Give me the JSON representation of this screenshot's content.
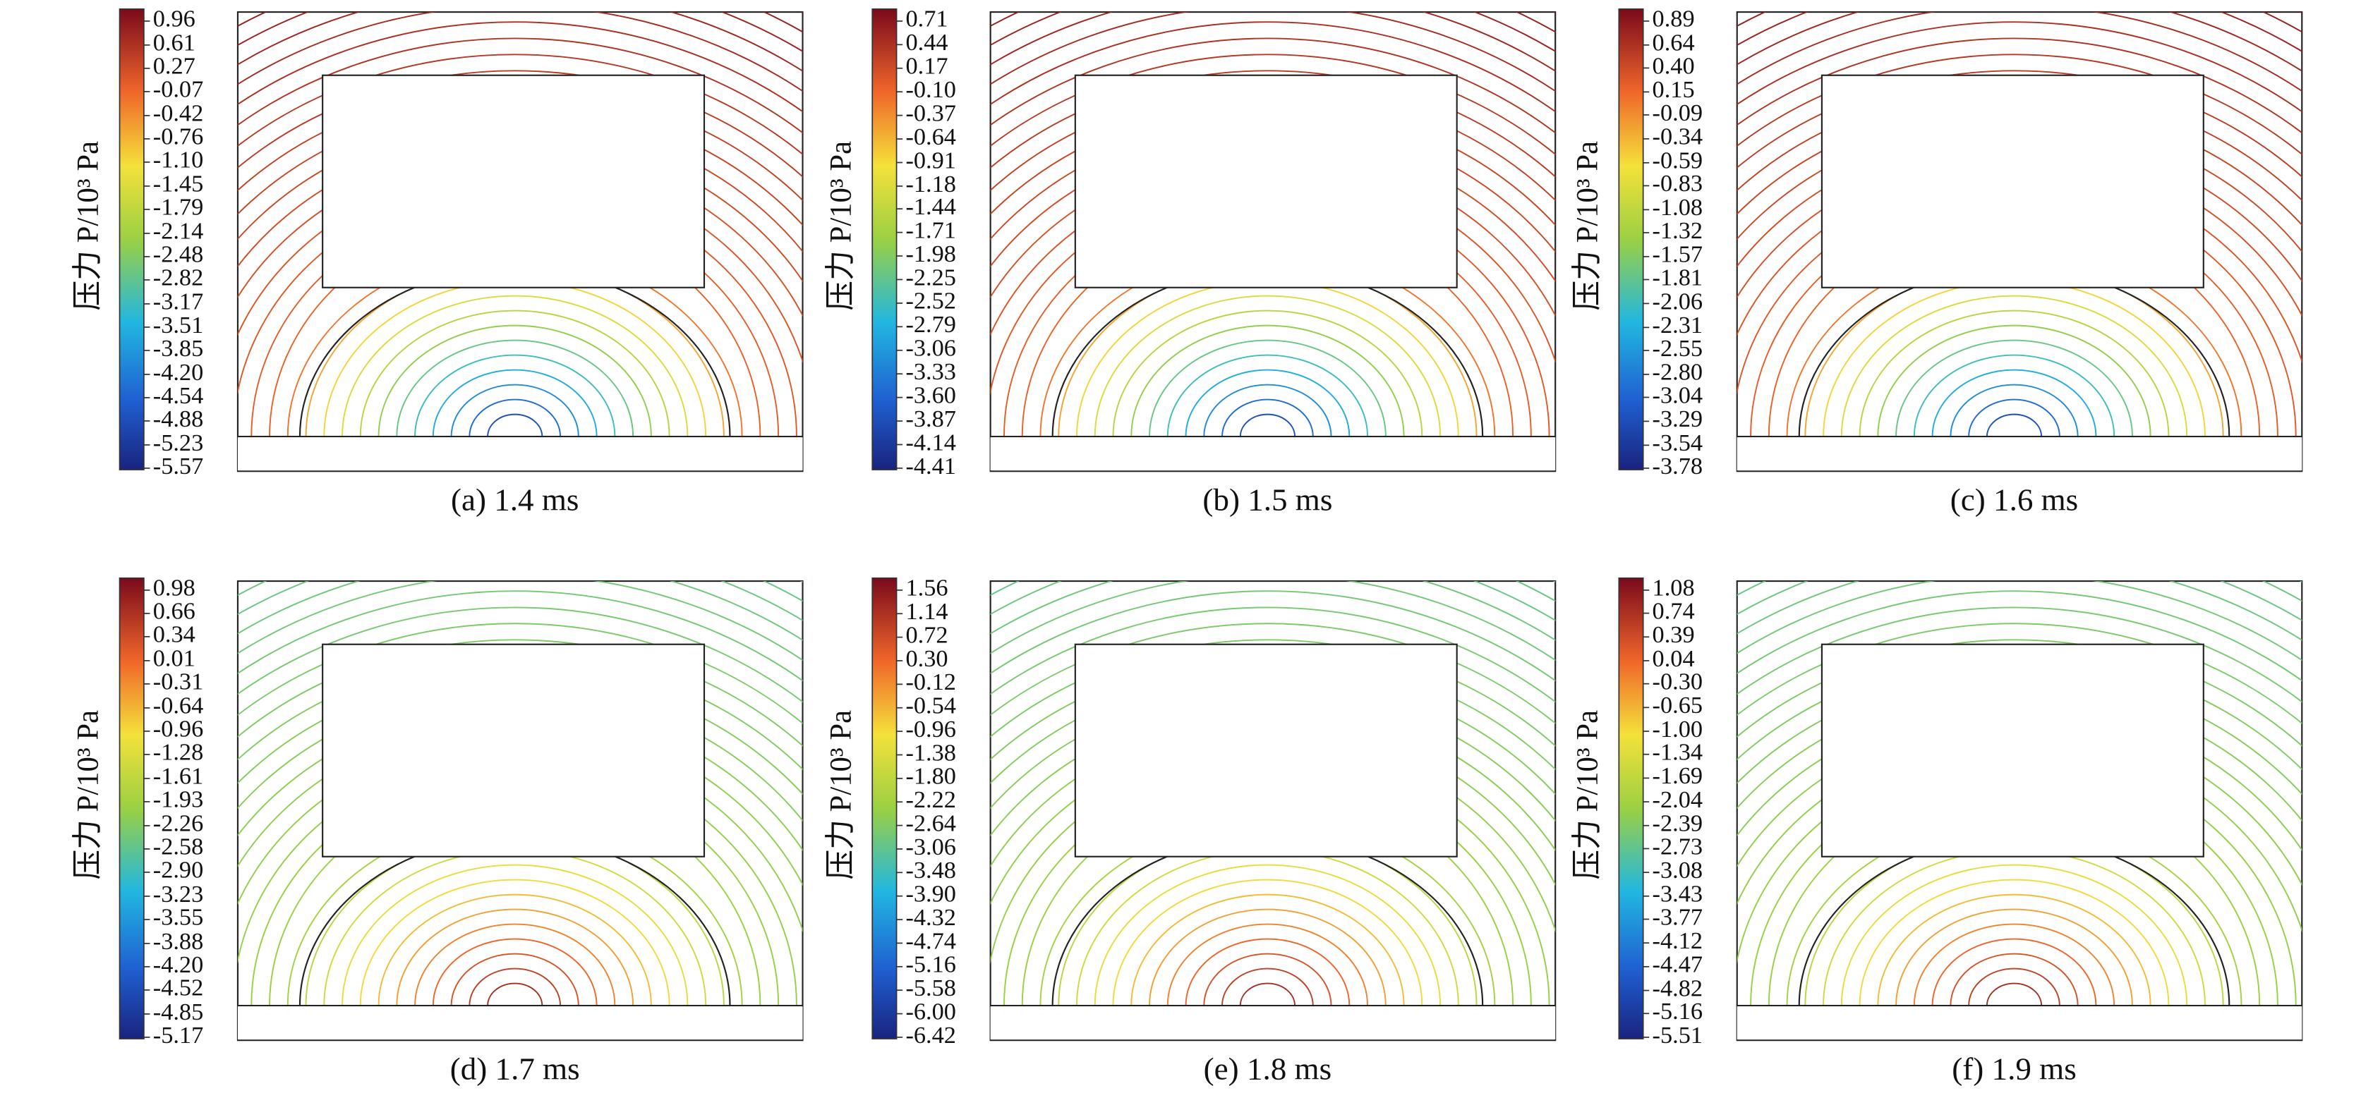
{
  "chart_data": [
    {
      "type": "contour",
      "colorbar_label": "压力 P/10³ Pa",
      "zlim": [
        -5.57,
        0.96
      ],
      "zticks": [
        0.96,
        0.61,
        0.27,
        -0.07,
        -0.42,
        -0.76,
        {
          "value": -1.1,
          "label": "-1.10"
        },
        -1.45,
        -1.79,
        -2.14,
        -2.48,
        -2.82,
        -3.17,
        -3.51,
        -3.85,
        {
          "value": -4.2,
          "label": "-4.20"
        },
        -4.54,
        -4.88,
        -5.23,
        -5.57
      ],
      "caption": "(a) 1.4 ms"
    },
    {
      "type": "contour",
      "colorbar_label": "压力 P/10³ Pa",
      "zlim": [
        -4.41,
        0.71
      ],
      "zticks": [
        0.71,
        0.44,
        0.17,
        {
          "value": -0.1,
          "label": "-0.10"
        },
        -0.37,
        -0.64,
        -0.91,
        -1.18,
        -1.44,
        -1.71,
        -1.98,
        -2.25,
        -2.52,
        -2.79,
        -3.06,
        -3.33,
        {
          "value": -3.6,
          "label": "-3.60"
        },
        -3.87,
        -4.14,
        -4.41
      ],
      "caption": "(b) 1.5 ms"
    },
    {
      "type": "contour",
      "colorbar_label": "压力 P/10³ Pa",
      "zlim": [
        -3.78,
        0.89
      ],
      "zticks": [
        0.89,
        0.64,
        {
          "value": 0.4,
          "label": "0.40"
        },
        0.15,
        -0.09,
        -0.34,
        -0.59,
        -0.83,
        -1.08,
        -1.32,
        -1.57,
        -1.81,
        -2.06,
        -2.31,
        -2.55,
        {
          "value": -2.8,
          "label": "-2.80"
        },
        -3.04,
        -3.29,
        -3.54,
        -3.78
      ],
      "caption": "(c) 1.6 ms"
    },
    {
      "type": "contour",
      "colorbar_label": "压力 P/10³ Pa",
      "zlim": [
        -5.17,
        0.98
      ],
      "zticks": [
        0.98,
        0.66,
        0.34,
        0.01,
        -0.31,
        -0.64,
        -0.96,
        -1.28,
        -1.61,
        -1.93,
        -2.26,
        -2.58,
        {
          "value": -2.9,
          "label": "-2.90"
        },
        -3.23,
        -3.55,
        -3.88,
        {
          "value": -4.2,
          "label": "-4.20"
        },
        -4.52,
        -4.85,
        -5.17
      ],
      "caption": "(d) 1.7 ms"
    },
    {
      "type": "contour",
      "colorbar_label": "压力 P/10³ Pa",
      "zlim": [
        -6.42,
        1.56
      ],
      "zticks": [
        1.56,
        1.14,
        0.72,
        {
          "value": 0.3,
          "label": "0.30"
        },
        -0.12,
        -0.54,
        -0.96,
        -1.38,
        {
          "value": -1.8,
          "label": "-1.80"
        },
        -2.22,
        -2.64,
        -3.06,
        -3.48,
        {
          "value": -3.9,
          "label": "-3.90"
        },
        -4.32,
        -4.74,
        -5.16,
        -5.58,
        {
          "value": -6,
          "label": "-6.00"
        },
        -6.42
      ],
      "caption": "(e) 1.8 ms"
    },
    {
      "type": "contour",
      "colorbar_label": "压力 P/10³ Pa",
      "zlim": [
        -5.51,
        1.08
      ],
      "zticks": [
        1.08,
        0.74,
        0.39,
        0.04,
        {
          "value": -0.3,
          "label": "-0.30"
        },
        -0.65,
        {
          "value": -1,
          "label": "-1.00"
        },
        -1.34,
        -1.69,
        -2.04,
        -2.39,
        -2.73,
        -3.08,
        -3.43,
        -3.77,
        -4.12,
        -4.47,
        -4.82,
        -5.16,
        -5.51
      ],
      "caption": "(f) 1.9 ms"
    }
  ]
}
